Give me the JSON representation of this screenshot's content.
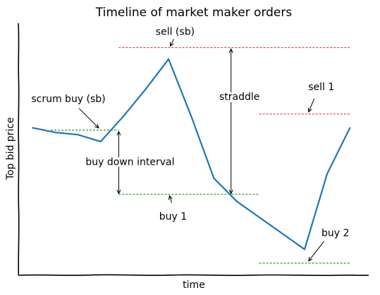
{
  "chart_data": {
    "type": "line",
    "title": "Timeline of market maker orders",
    "xlabel": "time",
    "ylabel": "Top bid price",
    "grid": false,
    "colors": {
      "price": "#1f77b4",
      "buy": "#008000",
      "sell": "#d62728",
      "annotation": "#000000"
    },
    "series": [
      {
        "values": [
          {
            "x": 0,
            "y": 0.0
          },
          {
            "x": 0.5,
            "y": -0.2
          },
          {
            "x": 1.0,
            "y": -0.3
          },
          {
            "x": 1.5,
            "y": -0.6
          },
          {
            "x": 2.0,
            "y": 0.5
          },
          {
            "x": 2.5,
            "y": 1.7
          },
          {
            "x": 3.0,
            "y": 3.0
          },
          {
            "x": 3.5,
            "y": 0.5
          },
          {
            "x": 4.0,
            "y": -2.2
          },
          {
            "x": 4.5,
            "y": -3.2
          },
          {
            "x": 5.0,
            "y": -3.9
          },
          {
            "x": 5.5,
            "y": -4.6
          },
          {
            "x": 6.0,
            "y": -5.3
          },
          {
            "x": 6.5,
            "y": -2.0
          },
          {
            "x": 7.0,
            "y": 0.0
          }
        ]
      }
    ],
    "order_levels": [
      {
        "name": "scrum buy (sb)",
        "side": "buy",
        "y": -0.1,
        "x_start": 0.4,
        "x_end": 1.9
      },
      {
        "name": "sell (sb)",
        "side": "sell",
        "y": 3.5,
        "x_start": 1.9,
        "x_end": 7.0
      },
      {
        "name": "buy 1",
        "side": "buy",
        "y": -2.9,
        "x_start": 1.9,
        "x_end": 5.0
      },
      {
        "name": "sell 1",
        "side": "sell",
        "y": 0.6,
        "x_start": 5.0,
        "x_end": 7.0
      },
      {
        "name": "buy 2",
        "side": "buy",
        "y": -5.9,
        "x_start": 5.0,
        "x_end": 7.0
      }
    ],
    "annotations": {
      "buy_down_interval": "buy down interval",
      "straddle": "straddle"
    },
    "xlim": [
      -0.3,
      7.4
    ],
    "ylim": [
      -6.4,
      4.5
    ]
  }
}
